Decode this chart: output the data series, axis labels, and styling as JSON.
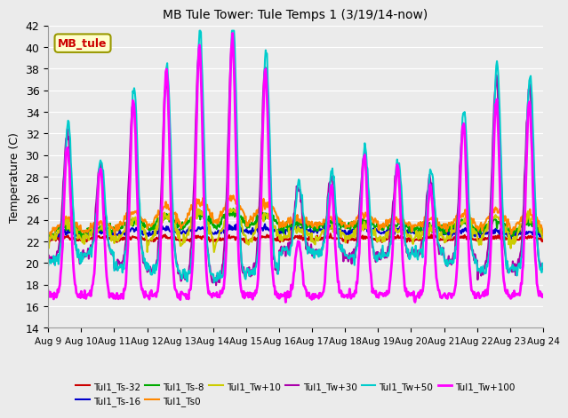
{
  "title": "MB Tule Tower: Tule Temps 1 (3/19/14-now)",
  "ylabel": "Temperature (C)",
  "ylim": [
    14,
    42
  ],
  "yticks": [
    14,
    16,
    18,
    20,
    22,
    24,
    26,
    28,
    30,
    32,
    34,
    36,
    38,
    40,
    42
  ],
  "x_tick_labels": [
    "Aug 9",
    "Aug 10",
    "Aug 11",
    "Aug 12",
    "Aug 13",
    "Aug 14",
    "Aug 15",
    "Aug 16",
    "Aug 17",
    "Aug 18",
    "Aug 19",
    "Aug 20",
    "Aug 21",
    "Aug 22",
    "Aug 23",
    "Aug 24"
  ],
  "bg_color": "#ebebeb",
  "grid_color": "#ffffff",
  "series": [
    {
      "label": "Tul1_Ts-32",
      "color": "#cc0000",
      "lw": 1.5
    },
    {
      "label": "Tul1_Ts-16",
      "color": "#0000cc",
      "lw": 1.5
    },
    {
      "label": "Tul1_Ts-8",
      "color": "#00aa00",
      "lw": 1.5
    },
    {
      "label": "Tul1_Ts0",
      "color": "#ff8800",
      "lw": 1.5
    },
    {
      "label": "Tul1_Tw+10",
      "color": "#cccc00",
      "lw": 1.5
    },
    {
      "label": "Tul1_Tw+30",
      "color": "#aa00aa",
      "lw": 1.5
    },
    {
      "label": "Tul1_Tw+50",
      "color": "#00cccc",
      "lw": 1.5
    },
    {
      "label": "Tul1_Tw+100",
      "color": "#ff00ff",
      "lw": 2.0
    }
  ],
  "annotation_box": {
    "text": "MB_tule",
    "facecolor": "#ffffcc",
    "edgecolor": "#999900",
    "textcolor": "#cc0000"
  }
}
